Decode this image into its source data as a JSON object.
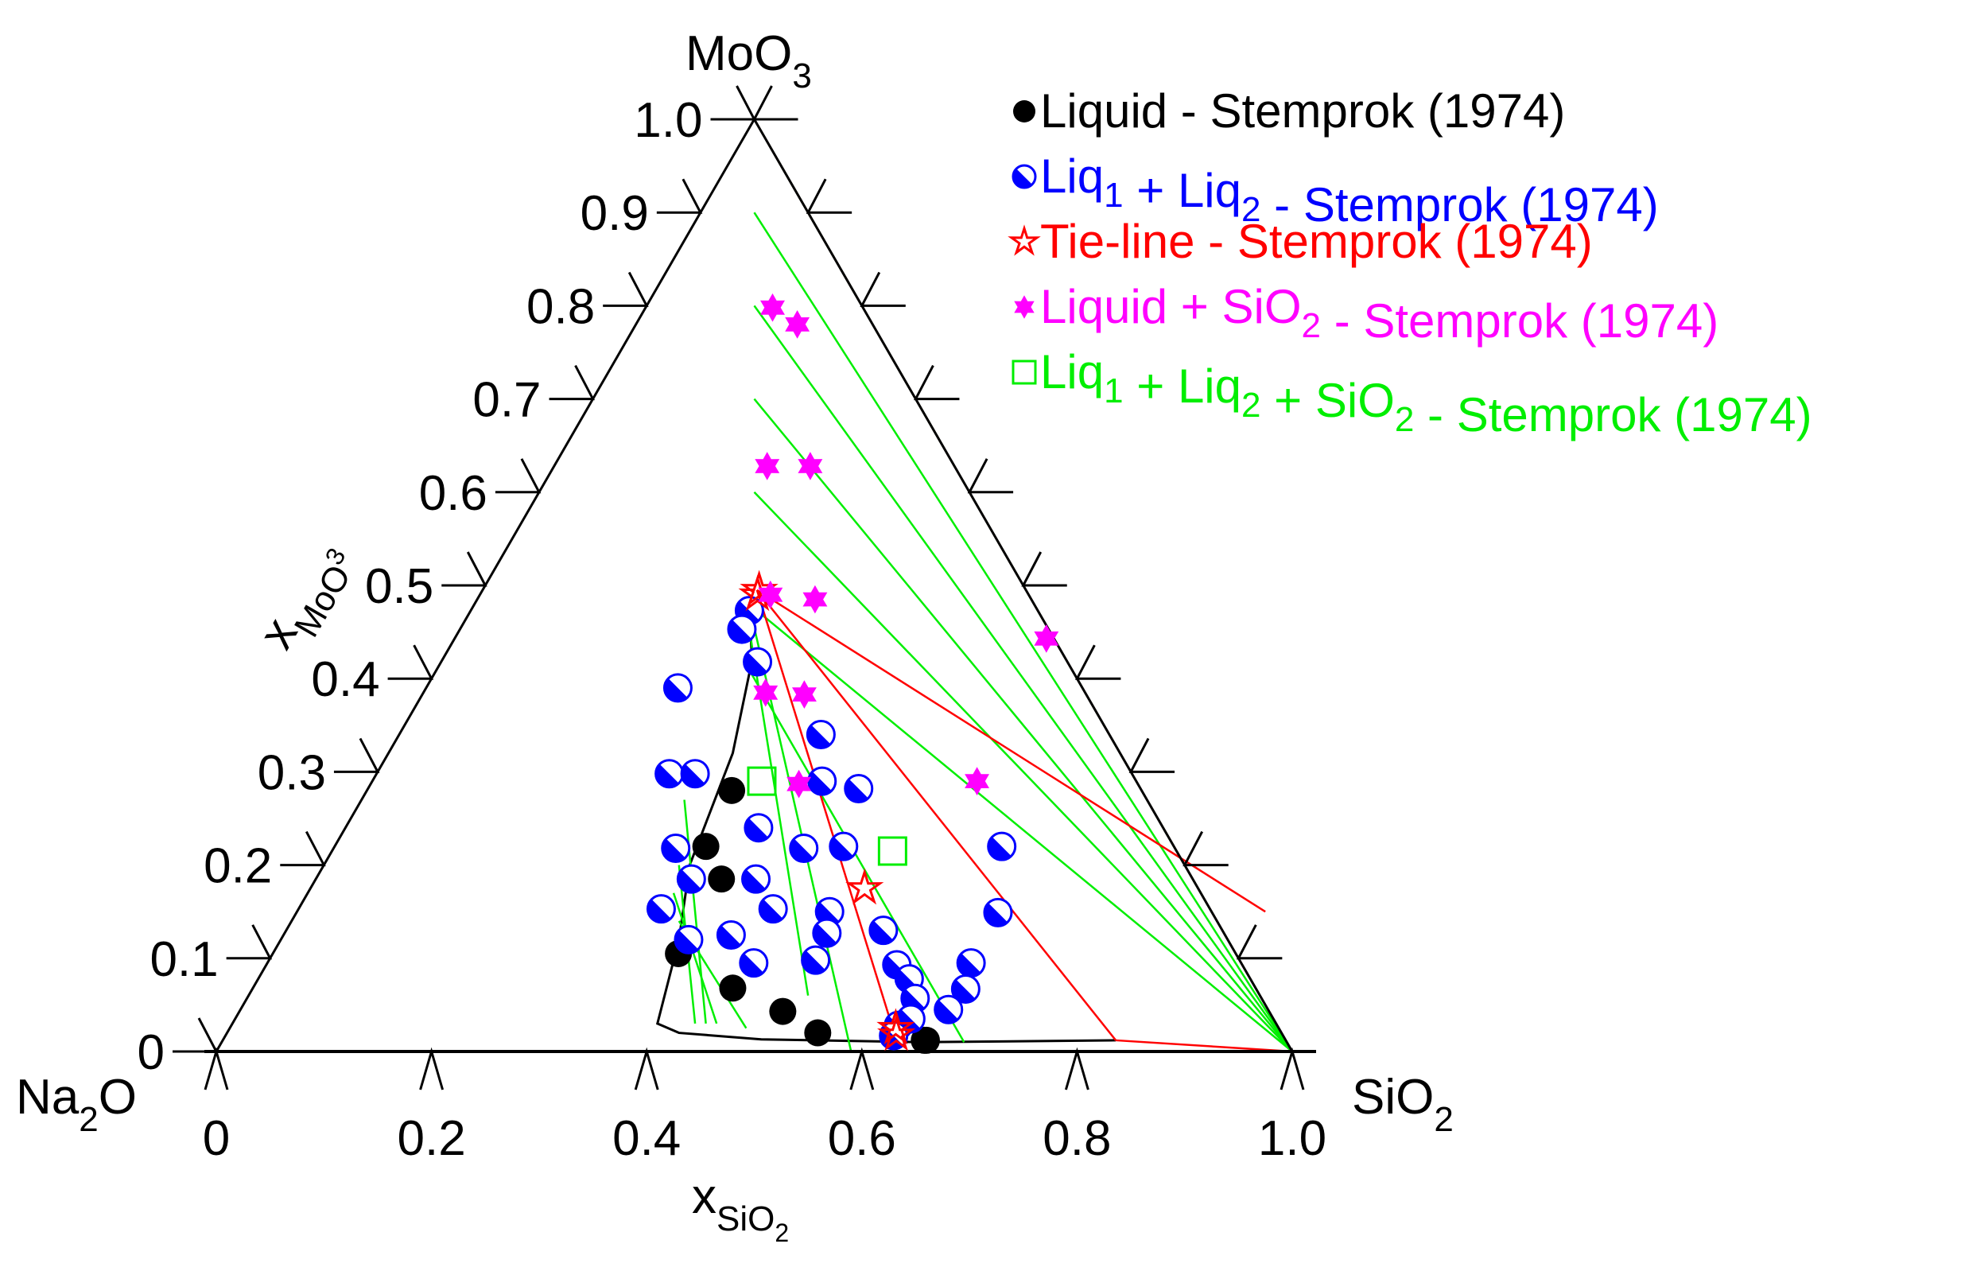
{
  "chart_data": {
    "type": "scatter",
    "subtype": "ternary",
    "vertices": {
      "bottom_left": "Na2O",
      "bottom_right": "SiO2",
      "top": "MoO3"
    },
    "xlabel": "xSiO2",
    "ylabel": "xMoO3",
    "x_ticks": [
      "0",
      "0.2",
      "0.4",
      "0.6",
      "0.8",
      "1.0"
    ],
    "y_ticks": [
      "0",
      "0.1",
      "0.2",
      "0.3",
      "0.4",
      "0.5",
      "0.6",
      "0.7",
      "0.8",
      "0.9",
      "1.0"
    ],
    "xlim": [
      0,
      1
    ],
    "ylim": [
      0,
      1
    ],
    "legend_position": "top-right",
    "series": [
      {
        "name": "Liquid - Stemprok (1974)",
        "marker": "filled-circle",
        "color": "#000000",
        "points": [
          [
            0.339,
            0.28
          ],
          [
            0.345,
            0.22
          ],
          [
            0.377,
            0.185
          ],
          [
            0.377,
            0.105
          ],
          [
            0.452,
            0.095
          ],
          [
            0.446,
            0.068
          ],
          [
            0.505,
            0.043
          ],
          [
            0.549,
            0.02
          ],
          [
            0.654,
            0.012
          ],
          [
            0.652,
            0.012
          ]
        ]
      },
      {
        "name": "Liq1 + Liq2 - Stemprok (1974)",
        "marker": "half-filled-circle",
        "color": "#0000ff",
        "points": [
          [
            0.259,
            0.473
          ],
          [
            0.262,
            0.453
          ],
          [
            0.294,
            0.418
          ],
          [
            0.234,
            0.39
          ],
          [
            0.272,
            0.298
          ],
          [
            0.296,
            0.298
          ],
          [
            0.392,
            0.34
          ],
          [
            0.418,
            0.29
          ],
          [
            0.456,
            0.282
          ],
          [
            0.384,
            0.24
          ],
          [
            0.437,
            0.218
          ],
          [
            0.473,
            0.22
          ],
          [
            0.318,
            0.218
          ],
          [
            0.349,
            0.185
          ],
          [
            0.409,
            0.185
          ],
          [
            0.441,
            0.153
          ],
          [
            0.495,
            0.15
          ],
          [
            0.337,
            0.153
          ],
          [
            0.379,
            0.12
          ],
          [
            0.416,
            0.125
          ],
          [
            0.452,
            0.095
          ],
          [
            0.504,
            0.127
          ],
          [
            0.508,
            0.098
          ],
          [
            0.555,
            0.13
          ],
          [
            0.586,
            0.093
          ],
          [
            0.605,
            0.078
          ],
          [
            0.621,
            0.057
          ],
          [
            0.62,
            0.028
          ],
          [
            0.62,
            0.22
          ],
          [
            0.652,
            0.149
          ],
          [
            0.654,
            0.095
          ],
          [
            0.663,
            0.067
          ],
          [
            0.658,
            0.045
          ],
          [
            0.628,
            0.035
          ],
          [
            0.621,
            0.017
          ]
        ]
      },
      {
        "name": "Tie-line - Stemprok (1974)",
        "marker": "open-star",
        "color": "#ff0000",
        "points": [
          [
            0.257,
            0.495
          ],
          [
            0.258,
            0.49
          ],
          [
            0.515,
            0.175
          ],
          [
            0.619,
            0.025
          ],
          [
            0.623,
            0.018
          ]
        ]
      },
      {
        "name": "Liquid + SiO2 - Stemprok (1974)",
        "marker": "filled-hexagram",
        "color": "#ff00ff",
        "points": [
          [
            0.118,
            0.798
          ],
          [
            0.15,
            0.78
          ],
          [
            0.198,
            0.628
          ],
          [
            0.238,
            0.628
          ],
          [
            0.27,
            0.49
          ],
          [
            0.314,
            0.485
          ],
          [
            0.318,
            0.385
          ],
          [
            0.355,
            0.383
          ],
          [
            0.398,
            0.287
          ],
          [
            0.55,
            0.443
          ],
          [
            0.562,
            0.29
          ]
        ]
      },
      {
        "name": "Liq1 + Liq2 + SiO2 - Stemprok (1974)",
        "marker": "open-square",
        "color": "#00ee00",
        "points": [
          [
            0.362,
            0.29
          ],
          [
            0.521,
            0.215
          ]
        ]
      }
    ],
    "lines": [
      {
        "name": "liquidus-boundary",
        "color": "#000000",
        "points": [
          [
            0.255,
            0.48
          ],
          [
            0.288,
            0.42
          ],
          [
            0.32,
            0.32
          ],
          [
            0.34,
            0.2
          ],
          [
            0.37,
            0.12
          ],
          [
            0.395,
            0.03
          ],
          [
            0.42,
            0.02
          ],
          [
            0.5,
            0.013
          ],
          [
            0.65,
            0.01
          ],
          [
            0.83,
            0.012
          ]
        ]
      },
      {
        "name": "green-tie-lines",
        "color": "#00ee00",
        "segments": [
          [
            [
              0.05,
              0.9
            ],
            [
              1,
              0
            ]
          ],
          [
            [
              0.1,
              0.8
            ],
            [
              1,
              0
            ]
          ],
          [
            [
              0.15,
              0.7
            ],
            [
              1,
              0
            ]
          ],
          [
            [
              0.2,
              0.6
            ],
            [
              1,
              0
            ]
          ],
          [
            [
              0.255,
              0.48
            ],
            [
              1,
              0
            ]
          ],
          [
            [
              0.0,
              1.0
            ],
            [
              1,
              0
            ]
          ],
          [
            [
              0.255,
              0.48
            ],
            [
              0.59,
              0.0
            ]
          ],
          [
            [
              0.258,
              0.47
            ],
            [
              0.52,
              0.06
            ]
          ],
          [
            [
              0.3,
              0.27
            ],
            [
              0.44,
              0.03
            ]
          ],
          [
            [
              0.33,
              0.2
            ],
            [
              0.43,
              0.03
            ]
          ],
          [
            [
              0.34,
              0.17
            ],
            [
              0.45,
              0.03
            ]
          ],
          [
            [
              0.36,
              0.14
            ],
            [
              0.48,
              0.025
            ]
          ],
          [
            [
              0.29,
              0.41
            ],
            [
              0.69,
              0.01
            ]
          ],
          [
            [
              0.83,
              0.0
            ],
            [
              1,
              0
            ]
          ]
        ]
      },
      {
        "name": "red-tie-lines",
        "color": "#ff0000",
        "segments": [
          [
            [
              0.255,
              0.495
            ],
            [
              0.62,
              0.02
            ]
          ],
          [
            [
              0.255,
              0.495
            ],
            [
              0.83,
              0.012
            ]
          ],
          [
            [
              0.255,
              0.495
            ],
            [
              0.9,
              0.15
            ]
          ],
          [
            [
              0.0,
              1.0
            ],
            [
              1,
              0
            ]
          ],
          [
            [
              0.83,
              0.012
            ],
            [
              1,
              0
            ]
          ]
        ]
      }
    ]
  },
  "labels": {
    "vertex_top": "MoO",
    "vertex_top_sub": "3",
    "vertex_left": "Na",
    "vertex_left_sub": "2",
    "vertex_left_tail": "O",
    "vertex_right": "SiO",
    "vertex_right_sub": "2",
    "xaxis_main": "x",
    "xaxis_sub": "SiO",
    "xaxis_sub2": "2",
    "yaxis_main": "x",
    "yaxis_sub": "MoO",
    "yaxis_sub2": "3"
  },
  "legend": [
    {
      "text": "Liquid - Stemprok (1974)",
      "parts": [
        [
          "Liquid - Stemprok (1974)",
          ""
        ]
      ],
      "color": "#000000",
      "marker": "filled-circle"
    },
    {
      "parts": [
        [
          "Liq",
          ""
        ],
        [
          "1",
          "sub"
        ],
        [
          " + Liq",
          ""
        ],
        [
          "2",
          "sub"
        ],
        [
          " - Stemprok (1974)",
          ""
        ]
      ],
      "color": "#0000ff",
      "marker": "half-filled-circle"
    },
    {
      "parts": [
        [
          "Tie-line - Stemprok (1974)",
          ""
        ]
      ],
      "color": "#ff0000",
      "marker": "open-star"
    },
    {
      "parts": [
        [
          "Liquid + SiO",
          ""
        ],
        [
          "2",
          "sub"
        ],
        [
          " - Stemprok (1974)",
          ""
        ]
      ],
      "color": "#ff00ff",
      "marker": "filled-hexagram"
    },
    {
      "parts": [
        [
          "Liq",
          ""
        ],
        [
          "1",
          "sub"
        ],
        [
          " + Liq",
          ""
        ],
        [
          "2",
          "sub"
        ],
        [
          " + SiO",
          ""
        ],
        [
          "2",
          "sub"
        ],
        [
          " - Stemprok (1974)",
          ""
        ]
      ],
      "color": "#00ee00",
      "marker": "open-square"
    }
  ]
}
